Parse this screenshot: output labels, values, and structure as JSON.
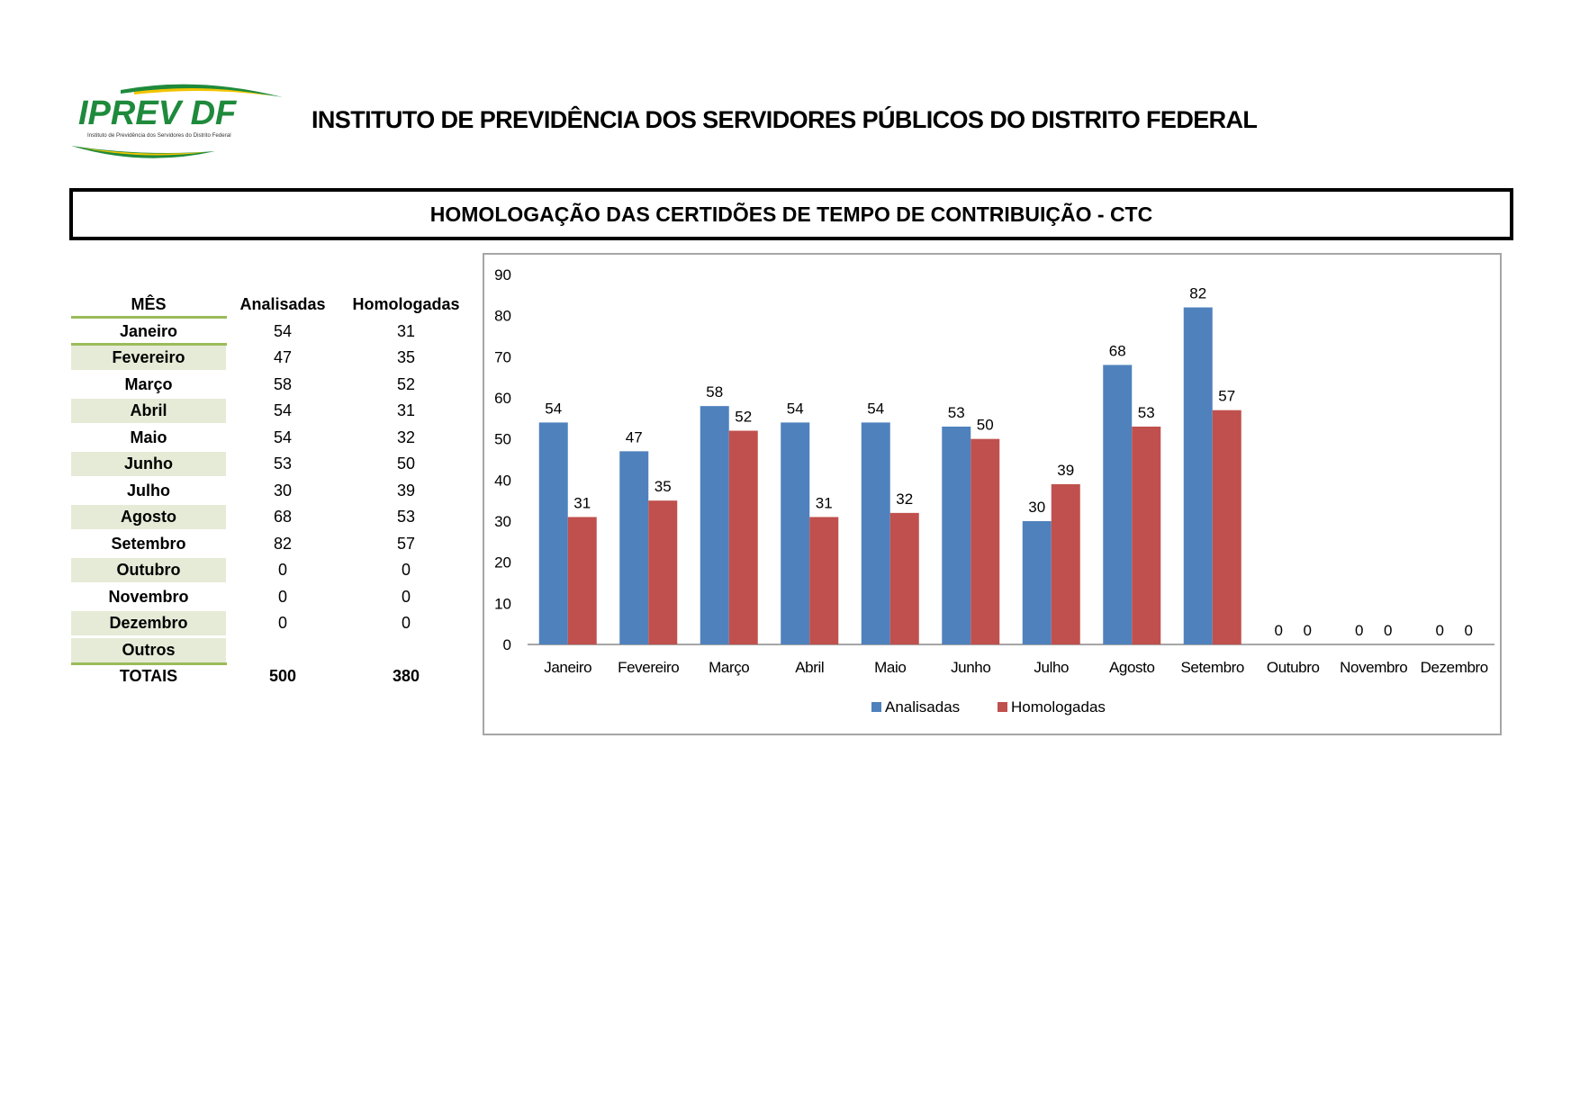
{
  "header": {
    "logo_text": "IPREV DF",
    "logo_subtitle": "Instituto de Previdência dos Servidores do Distrito Federal",
    "org_title": "INSTITUTO DE PREVIDÊNCIA DOS SERVIDORES PÚBLICOS DO DISTRITO FEDERAL"
  },
  "report_title": "HOMOLOGAÇÃO DAS CERTIDÕES DE TEMPO DE CONTRIBUIÇÃO - CTC",
  "table": {
    "headers": [
      "MÊS",
      "Analisadas",
      "Homologadas"
    ],
    "rows": [
      [
        "Janeiro",
        "54",
        "31"
      ],
      [
        "Fevereiro",
        "47",
        "35"
      ],
      [
        "Março",
        "58",
        "52"
      ],
      [
        "Abril",
        "54",
        "31"
      ],
      [
        "Maio",
        "54",
        "32"
      ],
      [
        "Junho",
        "53",
        "50"
      ],
      [
        "Julho",
        "30",
        "39"
      ],
      [
        "Agosto",
        "68",
        "53"
      ],
      [
        "Setembro",
        "82",
        "57"
      ],
      [
        "Outubro",
        "0",
        "0"
      ],
      [
        "Novembro",
        "0",
        "0"
      ],
      [
        "Dezembro",
        "0",
        "0"
      ],
      [
        "Outros",
        "",
        ""
      ]
    ],
    "totals": [
      "TOTAIS",
      "500",
      "380"
    ]
  },
  "chart_data": {
    "type": "bar",
    "categories": [
      "Janeiro",
      "Fevereiro",
      "Março",
      "Abril",
      "Maio",
      "Junho",
      "Julho",
      "Agosto",
      "Setembro",
      "Outubro",
      "Novembro",
      "Dezembro"
    ],
    "series": [
      {
        "name": "Analisadas",
        "color": "#4f81bd",
        "values": [
          54,
          47,
          58,
          54,
          54,
          53,
          30,
          68,
          82,
          0,
          0,
          0
        ]
      },
      {
        "name": "Homologadas",
        "color": "#c0504d",
        "values": [
          31,
          35,
          52,
          31,
          32,
          50,
          39,
          53,
          57,
          0,
          0,
          0
        ]
      }
    ],
    "ylim": [
      0,
      90
    ],
    "yticks": [
      0,
      10,
      20,
      30,
      40,
      50,
      60,
      70,
      80,
      90
    ],
    "legend": "bottom",
    "grid": false
  }
}
